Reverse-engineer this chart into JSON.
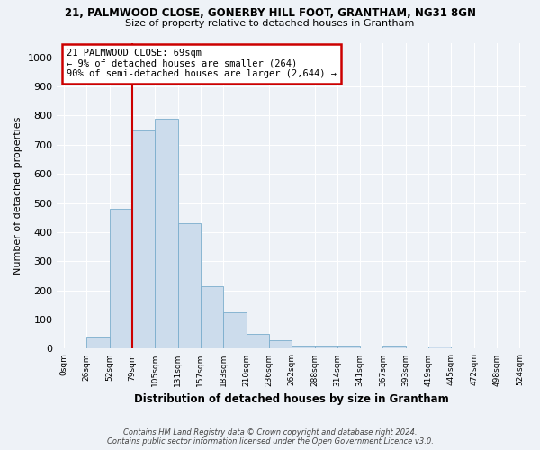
{
  "title_line1": "21, PALMWOOD CLOSE, GONERBY HILL FOOT, GRANTHAM, NG31 8GN",
  "title_line2": "Size of property relative to detached houses in Grantham",
  "xlabel": "Distribution of detached houses by size in Grantham",
  "ylabel": "Number of detached properties",
  "bin_labels": [
    "0sqm",
    "26sqm",
    "52sqm",
    "79sqm",
    "105sqm",
    "131sqm",
    "157sqm",
    "183sqm",
    "210sqm",
    "236sqm",
    "262sqm",
    "288sqm",
    "314sqm",
    "341sqm",
    "367sqm",
    "393sqm",
    "419sqm",
    "445sqm",
    "472sqm",
    "498sqm",
    "524sqm"
  ],
  "bar_heights": [
    0,
    40,
    480,
    750,
    790,
    430,
    215,
    125,
    50,
    28,
    12,
    12,
    10,
    0,
    10,
    0,
    8,
    0,
    0,
    0,
    0
  ],
  "bar_color": "#ccdcec",
  "bar_edge_color": "#7aadcc",
  "ylim": [
    0,
    1050
  ],
  "yticks": [
    0,
    100,
    200,
    300,
    400,
    500,
    600,
    700,
    800,
    900,
    1000
  ],
  "annotation_text": "21 PALMWOOD CLOSE: 69sqm\n← 9% of detached houses are smaller (264)\n90% of semi-detached houses are larger (2,644) →",
  "annotation_box_color": "#ffffff",
  "annotation_box_edge_color": "#cc0000",
  "red_line_color": "#cc0000",
  "red_line_bin_index": 3,
  "footer_line1": "Contains HM Land Registry data © Crown copyright and database right 2024.",
  "footer_line2": "Contains public sector information licensed under the Open Government Licence v3.0.",
  "background_color": "#eef2f7",
  "plot_background": "#eef2f7",
  "grid_color": "#ffffff",
  "fig_width": 6.0,
  "fig_height": 5.0
}
